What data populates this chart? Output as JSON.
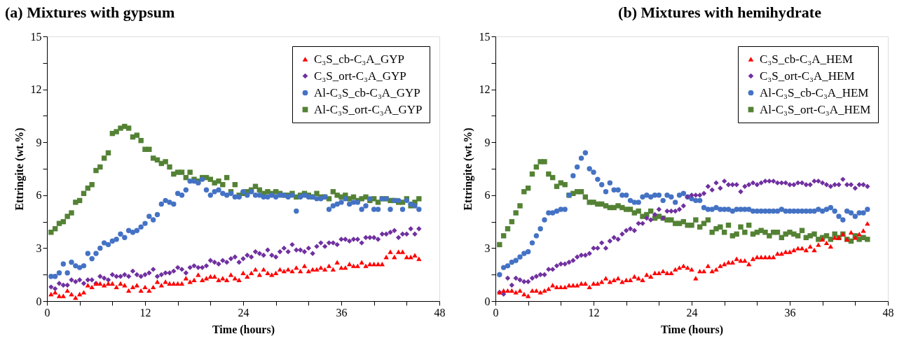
{
  "chart_data": [
    {
      "type": "scatter",
      "title": "(a) Mixtures with gypsum",
      "xlabel": "Time (hours)",
      "ylabel": "Ettringite (wt.%)",
      "xlim": [
        0,
        48
      ],
      "ylim": [
        0,
        15
      ],
      "xticks": [
        0,
        {
          "value": 4,
          "label": null
        },
        {
          "value": 8,
          "label": null
        },
        12,
        {
          "value": 16,
          "label": null
        },
        {
          "value": 20,
          "label": null
        },
        24,
        {
          "value": 28,
          "label": null
        },
        {
          "value": 32,
          "label": null
        },
        36,
        {
          "value": 40,
          "label": null
        },
        {
          "value": 44,
          "label": null
        },
        48
      ],
      "yticks": [
        0,
        {
          "value": 1.5,
          "label": null
        },
        3,
        {
          "value": 4.5,
          "label": null
        },
        6,
        {
          "value": 7.5,
          "label": null
        },
        9,
        {
          "value": 10.5,
          "label": null
        },
        12,
        {
          "value": 13.5,
          "label": null
        },
        15
      ],
      "grid": false,
      "legend": "top right",
      "x": [
        0.5,
        1,
        1.5,
        2,
        2.5,
        3,
        3.5,
        4,
        4.5,
        5,
        5.5,
        6,
        6.5,
        7,
        7.5,
        8,
        8.5,
        9,
        9.5,
        10,
        10.5,
        11,
        11.5,
        12,
        12.5,
        13,
        13.5,
        14,
        14.5,
        15,
        15.5,
        16,
        16.5,
        17,
        17.5,
        18,
        18.5,
        19,
        19.5,
        20,
        20.5,
        21,
        21.5,
        22,
        22.5,
        23,
        23.5,
        24,
        24.5,
        25,
        25.5,
        26,
        26.5,
        27,
        27.5,
        28,
        28.5,
        29,
        29.5,
        30,
        30.5,
        31,
        31.5,
        32,
        32.5,
        33,
        33.5,
        34,
        34.5,
        35,
        35.5,
        36,
        36.5,
        37,
        37.5,
        38,
        38.5,
        39,
        39.5,
        40,
        40.5,
        41,
        41.5,
        42,
        42.5,
        43,
        43.5,
        44,
        44.5,
        45,
        45.5
      ],
      "series": [
        {
          "name": "C₃S_cb-C₃A_GYP",
          "color": "#ff0000",
          "marker": "triangle",
          "values": [
            0.4,
            0.5,
            0.3,
            0.3,
            0.6,
            0.4,
            0.2,
            0.4,
            0.5,
            0.9,
            0.8,
            1.0,
            1.0,
            0.9,
            1.0,
            1.0,
            0.8,
            1.0,
            0.9,
            0.6,
            0.8,
            0.9,
            0.6,
            0.8,
            0.6,
            0.8,
            1.1,
            0.9,
            1.1,
            1.0,
            1.0,
            1.0,
            1.0,
            1.3,
            1.1,
            1.2,
            1.5,
            1.2,
            1.3,
            1.4,
            1.4,
            1.2,
            1.3,
            1.2,
            1.5,
            1.3,
            1.2,
            1.6,
            1.4,
            1.6,
            1.8,
            1.5,
            1.8,
            1.6,
            1.5,
            1.6,
            1.8,
            1.7,
            1.8,
            1.7,
            1.9,
            1.7,
            2.0,
            1.7,
            1.8,
            1.8,
            1.9,
            1.8,
            2.0,
            1.8,
            2.2,
            1.9,
            1.9,
            2.1,
            2.0,
            2.0,
            2.2,
            2.0,
            2.1,
            2.1,
            2.1,
            2.1,
            2.5,
            2.8,
            2.5,
            2.8,
            2.8,
            2.5,
            2.5,
            2.6,
            2.4
          ]
        },
        {
          "name": "C₃S_ort-C₃A_GYP",
          "color": "#7030a0",
          "marker": "diamond",
          "values": [
            0.8,
            0.7,
            1.0,
            0.9,
            0.9,
            1.2,
            1.1,
            1.2,
            1.0,
            1.2,
            1.2,
            1.0,
            1.4,
            1.3,
            1.2,
            1.5,
            1.4,
            1.4,
            1.5,
            1.4,
            1.7,
            1.5,
            1.4,
            1.5,
            1.6,
            1.8,
            1.4,
            1.5,
            1.6,
            1.6,
            1.7,
            1.9,
            1.8,
            1.6,
            1.9,
            2.0,
            1.9,
            1.9,
            2.0,
            2.3,
            2.2,
            2.1,
            2.3,
            2.2,
            2.4,
            2.5,
            2.2,
            2.4,
            2.6,
            2.5,
            2.8,
            2.7,
            2.6,
            2.9,
            2.6,
            2.5,
            2.8,
            3.0,
            2.8,
            3.2,
            2.9,
            2.9,
            2.8,
            3.0,
            2.7,
            3.1,
            3.3,
            3.1,
            3.3,
            3.3,
            3.2,
            3.5,
            3.5,
            3.4,
            3.5,
            3.5,
            3.3,
            3.6,
            3.6,
            3.6,
            3.5,
            3.8,
            3.8,
            3.9,
            4.0,
            3.6,
            3.8,
            3.8,
            4.1,
            3.8,
            4.1
          ]
        },
        {
          "name": "Al-C₃S_cb-C₃A_GYP",
          "color": "#4472c4",
          "marker": "circle",
          "values": [
            1.4,
            1.4,
            1.6,
            2.1,
            1.6,
            2.2,
            2.0,
            1.9,
            2.0,
            2.7,
            2.4,
            2.7,
            3.0,
            3.3,
            3.2,
            3.4,
            3.5,
            3.8,
            3.6,
            4.0,
            3.9,
            4.0,
            4.2,
            4.4,
            4.8,
            4.6,
            4.9,
            5.5,
            5.7,
            5.6,
            5.5,
            6.1,
            6.0,
            6.3,
            6.8,
            6.8,
            6.7,
            6.9,
            6.3,
            6.0,
            6.2,
            6.3,
            6.1,
            6.0,
            6.1,
            5.9,
            5.9,
            6.2,
            6.0,
            6.2,
            6.0,
            6.0,
            5.9,
            5.9,
            6.0,
            5.9,
            6.0,
            6.0,
            5.9,
            6.0,
            5.1,
            5.9,
            6.0,
            5.9,
            5.9,
            5.8,
            5.8,
            5.9,
            5.2,
            5.4,
            5.5,
            5.6,
            5.8,
            5.5,
            5.6,
            5.6,
            5.2,
            5.4,
            5.8,
            5.2,
            5.2,
            5.8,
            5.8,
            5.2,
            5.7,
            5.7,
            5.2,
            5.7,
            5.5,
            5.4,
            5.2
          ]
        },
        {
          "name": "Al-C₃S_ort-C₃A_GYP",
          "color": "#548235",
          "marker": "square",
          "values": [
            3.9,
            4.1,
            4.4,
            4.5,
            4.8,
            5.0,
            5.6,
            5.7,
            6.1,
            6.4,
            6.6,
            7.4,
            7.6,
            8.1,
            8.4,
            9.5,
            9.6,
            9.8,
            9.9,
            9.8,
            9.3,
            9.4,
            9.1,
            8.6,
            8.6,
            8.1,
            8.0,
            7.8,
            7.9,
            7.6,
            7.2,
            7.3,
            7.3,
            7.0,
            7.3,
            6.9,
            6.8,
            7.0,
            7.0,
            6.9,
            6.7,
            6.8,
            6.6,
            7.0,
            6.2,
            6.6,
            6.0,
            6.1,
            6.2,
            6.3,
            6.5,
            6.3,
            6.1,
            6.2,
            6.1,
            6.2,
            6.1,
            6.0,
            6.0,
            6.1,
            5.9,
            6.0,
            6.1,
            6.0,
            5.9,
            6.1,
            5.9,
            5.9,
            5.8,
            6.2,
            6.0,
            5.9,
            6.0,
            5.8,
            5.9,
            5.7,
            5.8,
            5.9,
            5.7,
            5.8,
            5.6,
            5.8,
            5.8,
            5.7,
            5.7,
            5.6,
            5.6,
            5.8,
            5.4,
            5.6,
            5.8
          ]
        }
      ]
    },
    {
      "type": "scatter",
      "title": "(b) Mixtures with hemihydrate",
      "xlabel": "Time (hours)",
      "ylabel": "Ettringite (wt.%)",
      "xlim": [
        0,
        48
      ],
      "ylim": [
        0,
        15
      ],
      "xticks": [
        0,
        {
          "value": 4,
          "label": null
        },
        {
          "value": 8,
          "label": null
        },
        12,
        {
          "value": 16,
          "label": null
        },
        {
          "value": 20,
          "label": null
        },
        24,
        {
          "value": 28,
          "label": null
        },
        {
          "value": 32,
          "label": null
        },
        36,
        {
          "value": 40,
          "label": null
        },
        {
          "value": 44,
          "label": null
        },
        48
      ],
      "yticks": [
        0,
        {
          "value": 1.5,
          "label": null
        },
        3,
        {
          "value": 4.5,
          "label": null
        },
        6,
        {
          "value": 7.5,
          "label": null
        },
        9,
        {
          "value": 10.5,
          "label": null
        },
        12,
        {
          "value": 13.5,
          "label": null
        },
        15
      ],
      "grid": false,
      "legend": "top right",
      "x": [
        0.5,
        1,
        1.5,
        2,
        2.5,
        3,
        3.5,
        4,
        4.5,
        5,
        5.5,
        6,
        6.5,
        7,
        7.5,
        8,
        8.5,
        9,
        9.5,
        10,
        10.5,
        11,
        11.5,
        12,
        12.5,
        13,
        13.5,
        14,
        14.5,
        15,
        15.5,
        16,
        16.5,
        17,
        17.5,
        18,
        18.5,
        19,
        19.5,
        20,
        20.5,
        21,
        21.5,
        22,
        22.5,
        23,
        23.5,
        24,
        24.5,
        25,
        25.5,
        26,
        26.5,
        27,
        27.5,
        28,
        28.5,
        29,
        29.5,
        30,
        30.5,
        31,
        31.5,
        32,
        32.5,
        33,
        33.5,
        34,
        34.5,
        35,
        35.5,
        36,
        36.5,
        37,
        37.5,
        38,
        38.5,
        39,
        39.5,
        40,
        40.5,
        41,
        41.5,
        42,
        42.5,
        43,
        43.5,
        44,
        44.5,
        45,
        45.5
      ],
      "series": [
        {
          "name": "C₃S_cb-C₃A_HEM",
          "color": "#ff0000",
          "marker": "triangle",
          "values": [
            0.5,
            0.6,
            0.6,
            0.6,
            0.5,
            0.6,
            0.4,
            0.3,
            0.6,
            0.6,
            0.5,
            0.6,
            0.7,
            0.9,
            0.8,
            0.8,
            0.8,
            0.9,
            0.9,
            0.9,
            1.0,
            1.0,
            0.8,
            1.0,
            1.0,
            1.1,
            1.3,
            1.1,
            1.2,
            1.3,
            1.1,
            1.2,
            1.2,
            1.4,
            1.3,
            1.2,
            1.5,
            1.4,
            1.6,
            1.6,
            1.7,
            1.6,
            1.6,
            1.8,
            1.9,
            2.0,
            1.9,
            1.8,
            1.3,
            1.7,
            1.7,
            2.0,
            1.7,
            1.8,
            2.0,
            2.1,
            2.2,
            2.2,
            2.4,
            2.3,
            2.3,
            2.1,
            2.4,
            2.5,
            2.5,
            2.5,
            2.5,
            2.5,
            2.7,
            2.7,
            2.8,
            2.8,
            2.9,
            3.0,
            3.0,
            2.9,
            3.1,
            2.9,
            3.2,
            3.5,
            3.3,
            3.1,
            3.6,
            3.6,
            3.8,
            3.5,
            3.9,
            3.6,
            3.8,
            4.0,
            4.4
          ]
        },
        {
          "name": "C₃S_ort-C₃A_HEM",
          "color": "#7030a0",
          "marker": "diamond",
          "values": [
            0.5,
            0.4,
            1.3,
            0.9,
            1.3,
            1.2,
            1.1,
            1.1,
            1.3,
            1.4,
            1.5,
            1.5,
            1.8,
            1.8,
            2.0,
            2.1,
            2.1,
            2.2,
            2.3,
            2.5,
            2.6,
            2.6,
            2.7,
            3.0,
            3.0,
            3.3,
            3.0,
            3.4,
            3.6,
            3.5,
            3.8,
            4.0,
            4.1,
            4.0,
            4.4,
            4.4,
            4.7,
            4.6,
            4.9,
            5.2,
            4.7,
            5.1,
            5.1,
            5.1,
            5.2,
            5.4,
            5.9,
            6.0,
            6.0,
            6.0,
            6.1,
            6.5,
            6.3,
            6.7,
            6.4,
            6.8,
            6.6,
            6.6,
            6.6,
            6.2,
            6.5,
            6.6,
            6.7,
            6.6,
            6.7,
            6.8,
            6.8,
            6.8,
            6.7,
            6.7,
            6.7,
            6.6,
            6.6,
            6.7,
            6.7,
            6.6,
            6.6,
            6.8,
            6.8,
            6.7,
            6.6,
            6.5,
            6.6,
            6.6,
            6.9,
            6.6,
            6.6,
            6.4,
            6.6,
            6.6,
            6.5
          ]
        },
        {
          "name": "Al-C₃S_cb-C₃A_HEM",
          "color": "#4472c4",
          "marker": "circle",
          "values": [
            1.5,
            1.9,
            2.0,
            2.2,
            2.3,
            2.5,
            2.7,
            2.8,
            3.3,
            3.7,
            4.1,
            4.6,
            5.0,
            5.0,
            5.1,
            5.2,
            5.2,
            6.0,
            7.1,
            7.6,
            8.1,
            8.4,
            7.5,
            7.3,
            6.9,
            6.6,
            6.2,
            6.7,
            6.3,
            6.3,
            6.0,
            6.0,
            5.7,
            5.6,
            5.6,
            5.9,
            6.0,
            5.9,
            6.0,
            6.0,
            5.7,
            6.0,
            5.9,
            5.6,
            6.0,
            6.1,
            5.9,
            5.8,
            5.7,
            5.7,
            5.3,
            5.2,
            5.2,
            5.3,
            5.2,
            5.2,
            5.2,
            5.1,
            5.2,
            5.2,
            5.2,
            5.2,
            5.1,
            5.1,
            5.1,
            5.1,
            5.1,
            5.1,
            5.1,
            5.2,
            5.1,
            5.1,
            5.1,
            5.1,
            5.1,
            5.1,
            5.1,
            5.1,
            5.2,
            5.1,
            5.2,
            5.3,
            5.1,
            4.8,
            4.6,
            5.1,
            5.0,
            4.8,
            5.0,
            5.0,
            5.2
          ]
        },
        {
          "name": "Al-C₃S_ort-C₃A_HEM",
          "color": "#548235",
          "marker": "square",
          "values": [
            3.2,
            3.7,
            4.1,
            4.5,
            5.0,
            5.4,
            6.2,
            6.4,
            7.2,
            7.6,
            7.9,
            7.9,
            7.2,
            7.0,
            6.5,
            6.7,
            6.6,
            6.0,
            6.1,
            6.2,
            6.2,
            5.9,
            5.6,
            5.6,
            5.5,
            5.5,
            5.4,
            5.3,
            5.3,
            5.4,
            5.3,
            5.2,
            5.2,
            5.0,
            5.1,
            4.8,
            4.9,
            5.1,
            4.7,
            4.8,
            4.7,
            4.6,
            4.6,
            4.4,
            4.4,
            4.5,
            4.3,
            4.3,
            4.6,
            4.2,
            4.4,
            4.6,
            3.9,
            4.1,
            4.2,
            3.9,
            4.3,
            3.7,
            3.8,
            4.2,
            3.9,
            4.3,
            3.8,
            3.9,
            4.0,
            3.9,
            3.7,
            3.9,
            3.9,
            3.6,
            3.8,
            3.9,
            3.8,
            3.7,
            4.0,
            3.6,
            3.7,
            3.8,
            3.5,
            3.6,
            3.7,
            3.5,
            3.8,
            3.6,
            3.8,
            3.5,
            3.4,
            3.7,
            3.5,
            3.6,
            3.5
          ]
        }
      ]
    }
  ]
}
